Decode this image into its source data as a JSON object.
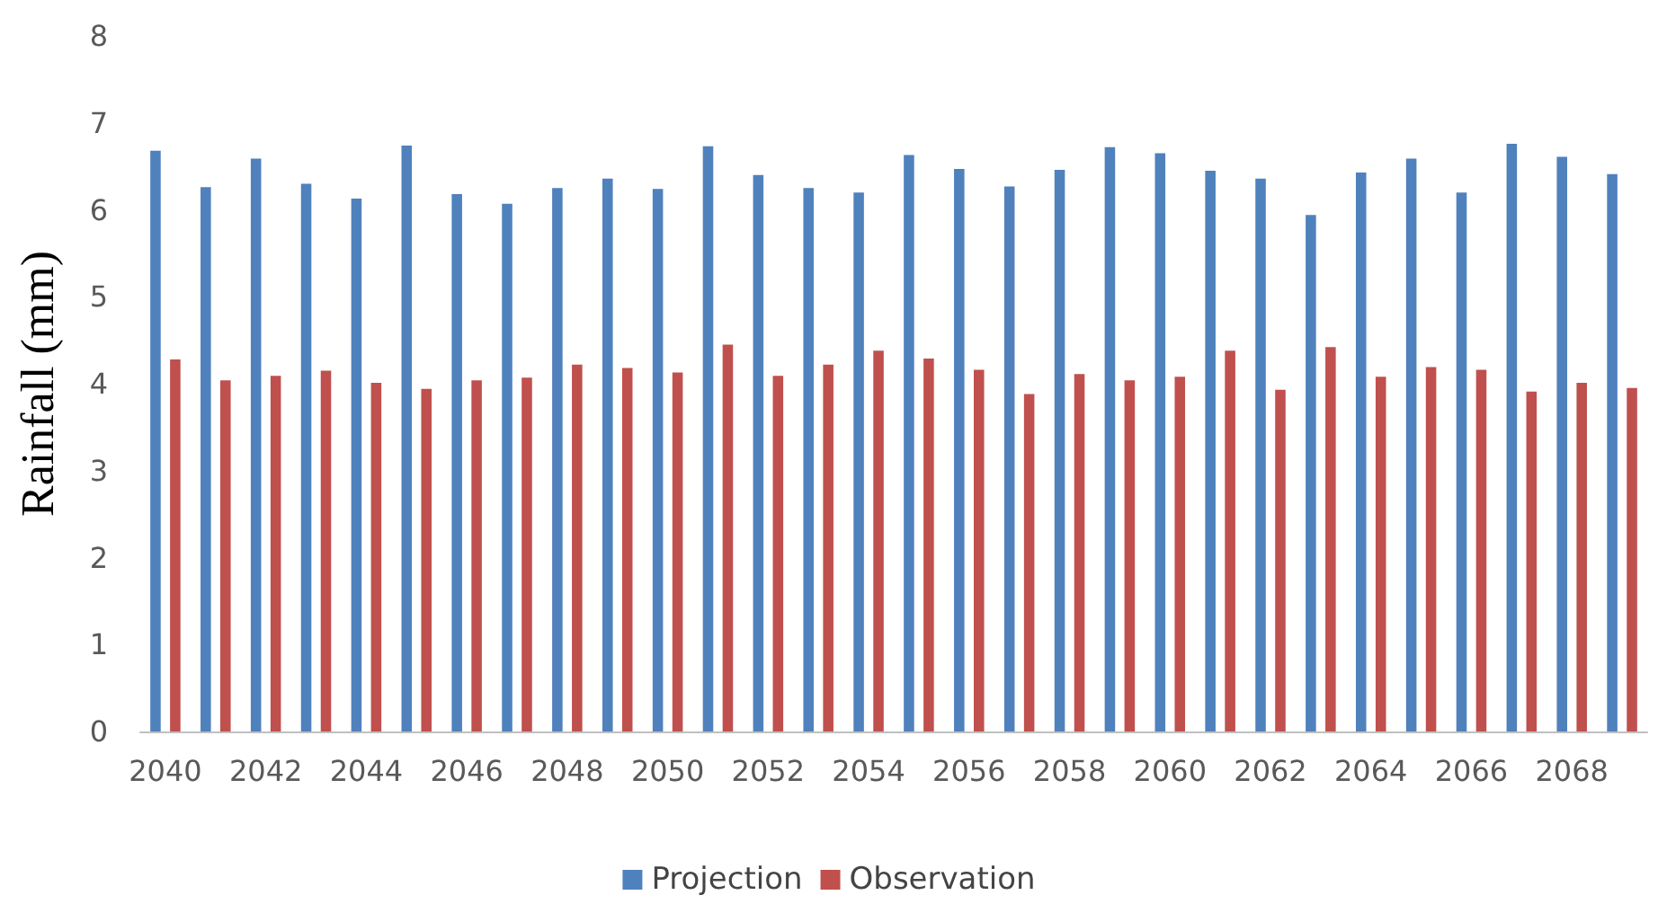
{
  "chart_data": {
    "type": "bar",
    "ylabel": "Rainfall (mm)",
    "categories": [
      "2040",
      null,
      "2042",
      null,
      "2044",
      null,
      "2046",
      null,
      "2048",
      null,
      "2050",
      null,
      "2052",
      null,
      "2054",
      null,
      "2056",
      null,
      "2058",
      null,
      "2060",
      null,
      "2062",
      null,
      "2064",
      null,
      "2066",
      null,
      "2068",
      null
    ],
    "series": [
      {
        "name": "Projection",
        "color": "#4f81bd",
        "values": [
          6.68,
          6.26,
          6.59,
          6.3,
          6.13,
          6.74,
          6.18,
          6.07,
          6.25,
          6.36,
          6.24,
          6.73,
          6.4,
          6.25,
          6.2,
          6.63,
          6.47,
          6.27,
          6.46,
          6.72,
          6.65,
          6.45,
          6.36,
          5.94,
          6.43,
          6.59,
          6.2,
          6.76,
          6.61,
          6.41
        ]
      },
      {
        "name": "Observation",
        "color": "#c0504d",
        "values": [
          4.28,
          4.04,
          4.09,
          4.15,
          4.01,
          3.94,
          4.04,
          4.07,
          4.22,
          4.18,
          4.13,
          4.45,
          4.09,
          4.22,
          4.38,
          4.29,
          4.16,
          3.88,
          4.11,
          4.04,
          4.08,
          4.38,
          3.93,
          4.42,
          4.08,
          4.19,
          4.16,
          3.91,
          4.01,
          3.95
        ]
      }
    ],
    "ylim": [
      0,
      8
    ],
    "yticks": [
      0,
      1,
      2,
      3,
      4,
      5,
      6,
      7,
      8
    ],
    "grid": false,
    "legend": "bottom"
  }
}
